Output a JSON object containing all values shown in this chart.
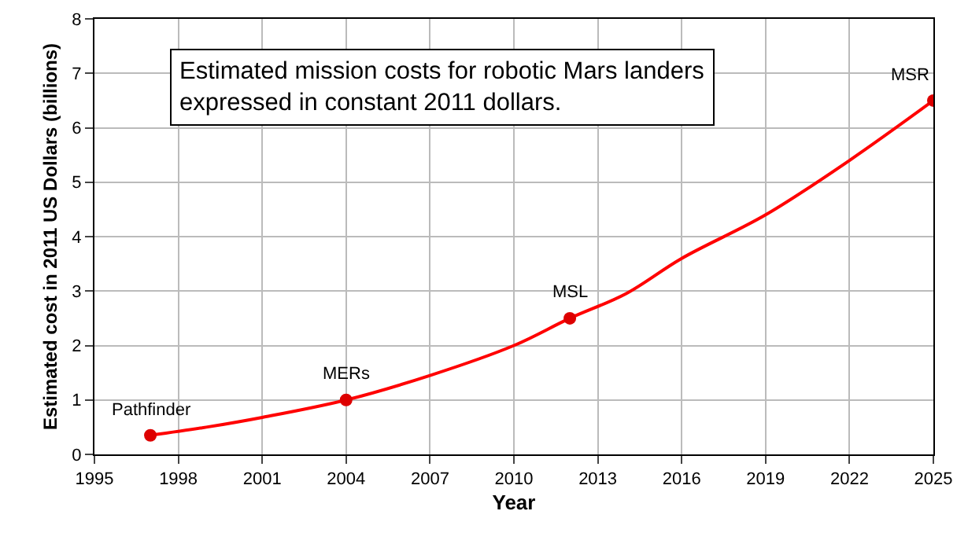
{
  "chart_data": {
    "type": "line",
    "title": "Estimated mission costs for robotic Mars landers\nexpressed in constant 2011 dollars.",
    "xlabel": "Year",
    "ylabel": "Estimated cost in 2011 US Dollars (billions)",
    "xlim": [
      1995,
      2025
    ],
    "xticks": [
      1995,
      1998,
      2001,
      2004,
      2007,
      2010,
      2013,
      2016,
      2019,
      2022,
      2025
    ],
    "ylim": [
      0,
      8
    ],
    "yticks": [
      0,
      1,
      2,
      3,
      4,
      5,
      6,
      7,
      8
    ],
    "grid": true,
    "line_style": "solid",
    "series": [
      {
        "marker": "none",
        "color": "#ff0000",
        "x": [
          1997,
          1999,
          2001,
          2004,
          2007,
          2010,
          2012,
          2014,
          2016,
          2019,
          2022,
          2025
        ],
        "values": [
          0.35,
          0.5,
          0.68,
          1.0,
          1.45,
          2.0,
          2.5,
          2.95,
          3.6,
          4.4,
          5.4,
          6.5
        ]
      },
      {
        "type": "scatter",
        "marker": "circle",
        "color": "#dd0000",
        "x": [
          1997,
          2004,
          2012,
          2025
        ],
        "values": [
          0.35,
          1.0,
          2.5,
          6.5
        ]
      }
    ],
    "annotations": [
      {
        "text": "Pathfinder",
        "x": 1997,
        "y": 0.35
      },
      {
        "text": "MERs",
        "x": 2004,
        "y": 1.0
      },
      {
        "text": "MSL",
        "x": 2012,
        "y": 2.5
      },
      {
        "text": "MSR",
        "x": 2025,
        "y": 6.5
      }
    ]
  }
}
